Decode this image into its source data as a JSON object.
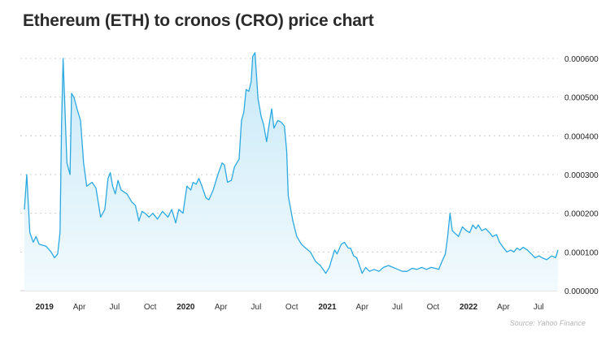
{
  "title": "Ethereum (ETH) to cronos (CRO) price chart",
  "source": "Source: Yahoo Finance",
  "colors": {
    "line": "#2aa9e0",
    "fill_top": "#c8e9f8",
    "fill_bottom": "#f2fafd",
    "grid": "#cfcfcf"
  },
  "chart_data": {
    "type": "area",
    "title": "Ethereum (ETH) to cronos (CRO) price chart",
    "xlabel": "",
    "ylabel": "",
    "y_ticks": [
      "0.000000",
      "0.000100",
      "0.000200",
      "0.000300",
      "0.000400",
      "0.000500",
      "0.000600"
    ],
    "ylim": [
      0,
      0.0006
    ],
    "xlim": [
      "2018-11-10",
      "2022-08-20"
    ],
    "x_ticks": [
      {
        "label": "2019",
        "date": "2019-01-01",
        "bold": true
      },
      {
        "label": "Apr",
        "date": "2019-04-01",
        "bold": false
      },
      {
        "label": "Jul",
        "date": "2019-07-01",
        "bold": false
      },
      {
        "label": "Oct",
        "date": "2019-10-01",
        "bold": false
      },
      {
        "label": "2020",
        "date": "2020-01-01",
        "bold": true
      },
      {
        "label": "Apr",
        "date": "2020-04-01",
        "bold": false
      },
      {
        "label": "Jul",
        "date": "2020-07-01",
        "bold": false
      },
      {
        "label": "Oct",
        "date": "2020-10-01",
        "bold": false
      },
      {
        "label": "2021",
        "date": "2021-01-01",
        "bold": true
      },
      {
        "label": "Apr",
        "date": "2021-04-01",
        "bold": false
      },
      {
        "label": "Jul",
        "date": "2021-07-01",
        "bold": false
      },
      {
        "label": "Oct",
        "date": "2021-10-01",
        "bold": false
      },
      {
        "label": "2022",
        "date": "2022-01-01",
        "bold": true
      },
      {
        "label": "Apr",
        "date": "2022-04-01",
        "bold": false
      },
      {
        "label": "Jul",
        "date": "2022-07-01",
        "bold": false
      }
    ],
    "grid": "horizontal dashed",
    "series": [
      {
        "points": [
          [
            "2018-11-10",
            0.00021
          ],
          [
            "2018-11-16",
            0.0003
          ],
          [
            "2018-11-24",
            0.00015
          ],
          [
            "2018-12-03",
            0.000125
          ],
          [
            "2018-12-10",
            0.00014
          ],
          [
            "2018-12-18",
            0.00012
          ],
          [
            "2019-01-05",
            0.000115
          ],
          [
            "2019-01-18",
            0.0001
          ],
          [
            "2019-01-27",
            8.5e-05
          ],
          [
            "2019-02-04",
            9.5e-05
          ],
          [
            "2019-02-10",
            0.00015
          ],
          [
            "2019-02-14",
            0.00043
          ],
          [
            "2019-02-18",
            0.0006
          ],
          [
            "2019-02-28",
            0.00033
          ],
          [
            "2019-03-08",
            0.0003
          ],
          [
            "2019-03-12",
            0.00051
          ],
          [
            "2019-03-18",
            0.0005
          ],
          [
            "2019-03-26",
            0.00047
          ],
          [
            "2019-04-04",
            0.00044
          ],
          [
            "2019-04-12",
            0.00033
          ],
          [
            "2019-04-20",
            0.00027
          ],
          [
            "2019-05-04",
            0.00028
          ],
          [
            "2019-05-14",
            0.000265
          ],
          [
            "2019-05-26",
            0.00019
          ],
          [
            "2019-06-06",
            0.00021
          ],
          [
            "2019-06-14",
            0.00029
          ],
          [
            "2019-06-20",
            0.000305
          ],
          [
            "2019-06-26",
            0.00027
          ],
          [
            "2019-07-03",
            0.00025
          ],
          [
            "2019-07-10",
            0.000285
          ],
          [
            "2019-07-18",
            0.00026
          ],
          [
            "2019-08-02",
            0.00025
          ],
          [
            "2019-08-14",
            0.00023
          ],
          [
            "2019-08-24",
            0.00022
          ],
          [
            "2019-09-02",
            0.00018
          ],
          [
            "2019-09-10",
            0.000205
          ],
          [
            "2019-09-18",
            0.0002
          ],
          [
            "2019-09-28",
            0.00019
          ],
          [
            "2019-10-08",
            0.0002
          ],
          [
            "2019-10-20",
            0.000185
          ],
          [
            "2019-11-02",
            0.000205
          ],
          [
            "2019-11-16",
            0.00019
          ],
          [
            "2019-11-26",
            0.00021
          ],
          [
            "2019-12-06",
            0.000175
          ],
          [
            "2019-12-14",
            0.00021
          ],
          [
            "2019-12-25",
            0.0002
          ],
          [
            "2020-01-04",
            0.00027
          ],
          [
            "2020-01-14",
            0.00026
          ],
          [
            "2020-01-20",
            0.00028
          ],
          [
            "2020-01-28",
            0.000275
          ],
          [
            "2020-02-04",
            0.00029
          ],
          [
            "2020-02-12",
            0.00027
          ],
          [
            "2020-02-22",
            0.00024
          ],
          [
            "2020-03-01",
            0.000235
          ],
          [
            "2020-03-12",
            0.00026
          ],
          [
            "2020-03-24",
            0.0003
          ],
          [
            "2020-04-04",
            0.00033
          ],
          [
            "2020-04-10",
            0.000325
          ],
          [
            "2020-04-18",
            0.00028
          ],
          [
            "2020-04-28",
            0.000285
          ],
          [
            "2020-05-06",
            0.00032
          ],
          [
            "2020-05-18",
            0.00034
          ],
          [
            "2020-05-24",
            0.00044
          ],
          [
            "2020-05-30",
            0.00046
          ],
          [
            "2020-06-05",
            0.00052
          ],
          [
            "2020-06-12",
            0.000515
          ],
          [
            "2020-06-18",
            0.00054
          ],
          [
            "2020-06-22",
            0.000605
          ],
          [
            "2020-06-28",
            0.000615
          ],
          [
            "2020-07-06",
            0.000495
          ],
          [
            "2020-07-14",
            0.00045
          ],
          [
            "2020-07-20",
            0.00043
          ],
          [
            "2020-07-28",
            0.000385
          ],
          [
            "2020-08-02",
            0.00042
          ],
          [
            "2020-08-10",
            0.00047
          ],
          [
            "2020-08-16",
            0.00042
          ],
          [
            "2020-08-26",
            0.00044
          ],
          [
            "2020-09-04",
            0.000435
          ],
          [
            "2020-09-12",
            0.000425
          ],
          [
            "2020-09-18",
            0.00036
          ],
          [
            "2020-09-22",
            0.000245
          ],
          [
            "2020-10-04",
            0.00018
          ],
          [
            "2020-10-14",
            0.00014
          ],
          [
            "2020-10-26",
            0.00012
          ],
          [
            "2020-11-06",
            0.00011
          ],
          [
            "2020-11-18",
            0.0001
          ],
          [
            "2020-12-02",
            7.5e-05
          ],
          [
            "2020-12-14",
            6.5e-05
          ],
          [
            "2020-12-28",
            4.5e-05
          ],
          [
            "2021-01-06",
            6e-05
          ],
          [
            "2021-01-12",
            8e-05
          ],
          [
            "2021-01-20",
            0.000105
          ],
          [
            "2021-01-26",
            9.5e-05
          ],
          [
            "2021-02-06",
            0.00012
          ],
          [
            "2021-02-14",
            0.000125
          ],
          [
            "2021-02-24",
            0.00011
          ],
          [
            "2021-03-02",
            0.00011
          ],
          [
            "2021-03-10",
            9e-05
          ],
          [
            "2021-03-18",
            8.5e-05
          ],
          [
            "2021-04-01",
            4.5e-05
          ],
          [
            "2021-04-10",
            6e-05
          ],
          [
            "2021-04-20",
            5e-05
          ],
          [
            "2021-05-02",
            5.5e-05
          ],
          [
            "2021-05-14",
            5e-05
          ],
          [
            "2021-05-26",
            6e-05
          ],
          [
            "2021-06-08",
            6.5e-05
          ],
          [
            "2021-06-20",
            6e-05
          ],
          [
            "2021-07-02",
            5.5e-05
          ],
          [
            "2021-07-14",
            5e-05
          ],
          [
            "2021-07-26",
            5e-05
          ],
          [
            "2021-08-08",
            5.8e-05
          ],
          [
            "2021-08-20",
            5.5e-05
          ],
          [
            "2021-09-02",
            6e-05
          ],
          [
            "2021-09-14",
            5.5e-05
          ],
          [
            "2021-09-26",
            6e-05
          ],
          [
            "2021-10-06",
            5.8e-05
          ],
          [
            "2021-10-16",
            5.5e-05
          ],
          [
            "2021-10-24",
            7.5e-05
          ],
          [
            "2021-11-02",
            9.5e-05
          ],
          [
            "2021-11-08",
            0.00014
          ],
          [
            "2021-11-14",
            0.0002
          ],
          [
            "2021-11-20",
            0.000155
          ],
          [
            "2021-12-06",
            0.00014
          ],
          [
            "2021-12-16",
            0.000165
          ],
          [
            "2021-12-26",
            0.000155
          ],
          [
            "2022-01-04",
            0.00015
          ],
          [
            "2022-01-12",
            0.00017
          ],
          [
            "2022-01-20",
            0.00016
          ],
          [
            "2022-01-26",
            0.00017
          ],
          [
            "2022-02-04",
            0.000155
          ],
          [
            "2022-02-14",
            0.00016
          ],
          [
            "2022-02-24",
            0.00015
          ],
          [
            "2022-03-04",
            0.00014
          ],
          [
            "2022-03-14",
            0.000145
          ],
          [
            "2022-03-22",
            0.000125
          ],
          [
            "2022-04-02",
            0.00011
          ],
          [
            "2022-04-10",
            0.0001
          ],
          [
            "2022-04-20",
            0.000105
          ],
          [
            "2022-04-28",
            0.0001
          ],
          [
            "2022-05-06",
            0.00011
          ],
          [
            "2022-05-14",
            0.000105
          ],
          [
            "2022-05-22",
            0.000112
          ],
          [
            "2022-06-02",
            0.000105
          ],
          [
            "2022-06-12",
            9.5e-05
          ],
          [
            "2022-06-22",
            8.5e-05
          ],
          [
            "2022-07-02",
            9e-05
          ],
          [
            "2022-07-10",
            8.5e-05
          ],
          [
            "2022-07-22",
            8e-05
          ],
          [
            "2022-08-04",
            9e-05
          ],
          [
            "2022-08-14",
            8.5e-05
          ],
          [
            "2022-08-20",
            0.000105
          ]
        ]
      }
    ]
  }
}
